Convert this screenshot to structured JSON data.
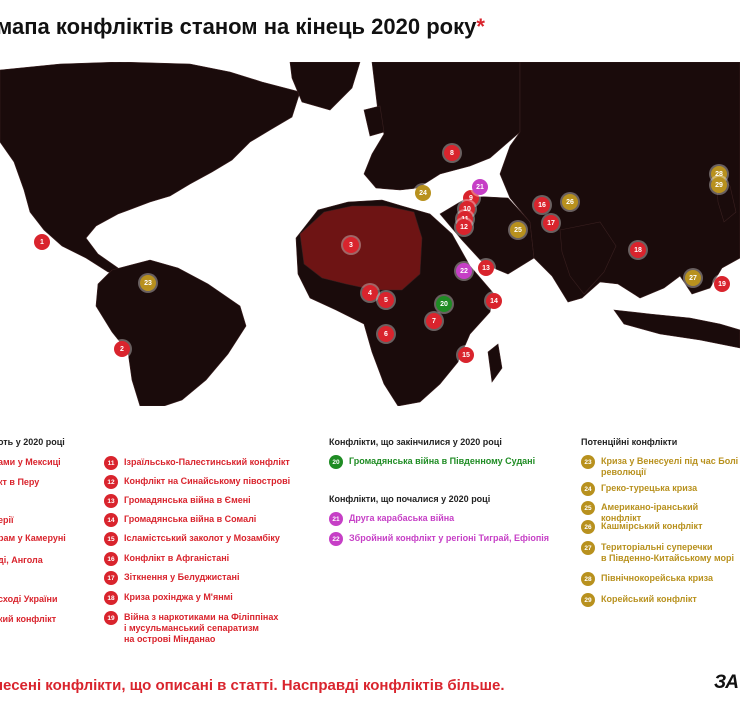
{
  "title": "мапа конфліктів станом на кінець 2020 року",
  "title_star": "*",
  "colors": {
    "red": "#d9242d",
    "green": "#1f8c24",
    "pink": "#c63fc6",
    "gold": "#b8911e",
    "land": "#1a0b0b",
    "highlight": "#6e1414"
  },
  "markers": [
    {
      "n": "1",
      "c": "red"
    },
    {
      "n": "2",
      "c": "red"
    },
    {
      "n": "3",
      "c": "red"
    },
    {
      "n": "4",
      "c": "red"
    },
    {
      "n": "5",
      "c": "red"
    },
    {
      "n": "6",
      "c": "red"
    },
    {
      "n": "7",
      "c": "red"
    },
    {
      "n": "8",
      "c": "red"
    },
    {
      "n": "9",
      "c": "red"
    },
    {
      "n": "10",
      "c": "red"
    },
    {
      "n": "11",
      "c": "red"
    },
    {
      "n": "12",
      "c": "red"
    },
    {
      "n": "13",
      "c": "red"
    },
    {
      "n": "14",
      "c": "red"
    },
    {
      "n": "15",
      "c": "red"
    },
    {
      "n": "16",
      "c": "red"
    },
    {
      "n": "17",
      "c": "red"
    },
    {
      "n": "18",
      "c": "red"
    },
    {
      "n": "19",
      "c": "red"
    },
    {
      "n": "20",
      "c": "green"
    },
    {
      "n": "21",
      "c": "pink"
    },
    {
      "n": "22",
      "c": "pink"
    },
    {
      "n": "23",
      "c": "gold"
    },
    {
      "n": "24",
      "c": "gold"
    },
    {
      "n": "25",
      "c": "gold"
    },
    {
      "n": "26",
      "c": "gold"
    },
    {
      "n": "27",
      "c": "gold"
    },
    {
      "n": "28",
      "c": "gold"
    },
    {
      "n": "29",
      "c": "gold"
    }
  ],
  "ongoing_header": "оть у 2020 році",
  "ongoing_left": [
    "ами у Мексиці",
    "кт в Перу",
    "і",
    "ерії",
    "рам у Камеруні",
    "ді, Ангола",
    "сході України",
    "кий конфлікт"
  ],
  "ongoing_right": [
    {
      "n": "11",
      "label": "Ізраїльсько-Палестинський конфлікт"
    },
    {
      "n": "12",
      "label": "Конфлікт на Синайському півострові"
    },
    {
      "n": "13",
      "label": "Громадянська війна в Ємені"
    },
    {
      "n": "14",
      "label": "Громадянська війна в Сомалі"
    },
    {
      "n": "15",
      "label": "Ісламістський заколот у Мозамбіку"
    },
    {
      "n": "16",
      "label": "Конфлікт в Афганістані"
    },
    {
      "n": "17",
      "label": "Зіткнення у Белуджистані"
    },
    {
      "n": "18",
      "label": "Криза рохінджа у М'янмі"
    },
    {
      "n": "19",
      "label": "Війна з наркотиками на Філіппінах\nі мусульманський сепаратизм\nна острові Мінданао"
    }
  ],
  "ended_header": "Конфлікти, що закінчилися у 2020 році",
  "ended": [
    {
      "n": "20",
      "label": "Громадянська війна в Південному Судані"
    }
  ],
  "started_header": "Конфлікти, що почалися у 2020 році",
  "started": [
    {
      "n": "21",
      "label": "Друга карабаська війна"
    },
    {
      "n": "22",
      "label": "Збройний конфлікт у регіоні Тиграй, Ефіопія"
    }
  ],
  "potential_header": "Потенційні конфлікти",
  "potential": [
    {
      "n": "23",
      "label": "Криза у Венесуелі під час Болі\nреволюції"
    },
    {
      "n": "24",
      "label": "Греко-турецька криза"
    },
    {
      "n": "25",
      "label": "Американо-іранський конфлікт"
    },
    {
      "n": "26",
      "label": "Кашмірський конфлікт"
    },
    {
      "n": "27",
      "label": "Територіальні суперечки\nв Південно-Китайському морі"
    },
    {
      "n": "28",
      "label": "Північнокорейська криза"
    },
    {
      "n": "29",
      "label": "Корейський конфлікт"
    }
  ],
  "footnote": "несені конфлікти, що описані в статті. Насправді конфліктів більше.",
  "logo": "ЗА"
}
